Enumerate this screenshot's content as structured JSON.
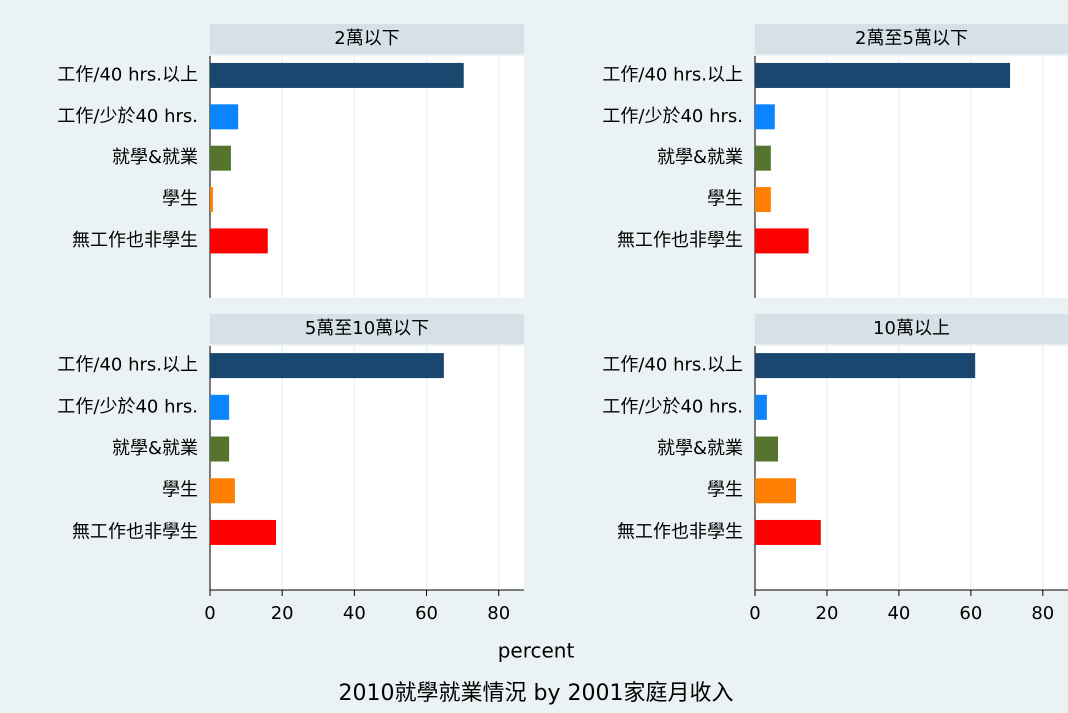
{
  "chart_data": [
    {
      "type": "bar",
      "orientation": "horizontal",
      "title": "2萬以下",
      "categories": [
        "工作/40 hrs.以上",
        "工作/少於40 hrs.",
        "就學&就業",
        "學生",
        "無工作也非學生"
      ],
      "values": [
        70.3,
        7.8,
        5.8,
        0.8,
        16
      ],
      "colors": [
        "#1a476f",
        "#0a84ff",
        "#55752f",
        "#ff8000",
        "#ff0000"
      ],
      "xlim": [
        0,
        87
      ],
      "xticks": [
        0,
        20,
        40,
        60,
        80
      ],
      "grid": true
    },
    {
      "type": "bar",
      "orientation": "horizontal",
      "title": "2萬至5萬以下",
      "categories": [
        "工作/40 hrs.以上",
        "工作/少於40 hrs.",
        "就學&就業",
        "學生",
        "無工作也非學生"
      ],
      "values": [
        70.9,
        5.5,
        4.4,
        4.4,
        14.9
      ],
      "colors": [
        "#1a476f",
        "#0a84ff",
        "#55752f",
        "#ff8000",
        "#ff0000"
      ],
      "xlim": [
        0,
        87
      ],
      "xticks": [
        0,
        20,
        40,
        60,
        80
      ],
      "grid": true
    },
    {
      "type": "bar",
      "orientation": "horizontal",
      "title": "5萬至10萬以下",
      "categories": [
        "工作/40 hrs.以上",
        "工作/少於40 hrs.",
        "就學&就業",
        "學生",
        "無工作也非學生"
      ],
      "values": [
        64.8,
        5.3,
        5.3,
        6.9,
        18.3
      ],
      "colors": [
        "#1a476f",
        "#0a84ff",
        "#55752f",
        "#ff8000",
        "#ff0000"
      ],
      "xlim": [
        0,
        87
      ],
      "xticks": [
        0,
        20,
        40,
        60,
        80
      ],
      "grid": true
    },
    {
      "type": "bar",
      "orientation": "horizontal",
      "title": "10萬以上",
      "categories": [
        "工作/40 hrs.以上",
        "工作/少於40 hrs.",
        "就學&就業",
        "學生",
        "無工作也非學生"
      ],
      "values": [
        61.2,
        3.3,
        6.4,
        11.4,
        18.3
      ],
      "colors": [
        "#1a476f",
        "#0a84ff",
        "#55752f",
        "#ff8000",
        "#ff0000"
      ],
      "xlim": [
        0,
        87
      ],
      "xticks": [
        0,
        20,
        40,
        60,
        80
      ],
      "grid": true
    }
  ],
  "xlabel": "percent",
  "caption": "2010就學就業情況  by 2001家庭月收入"
}
